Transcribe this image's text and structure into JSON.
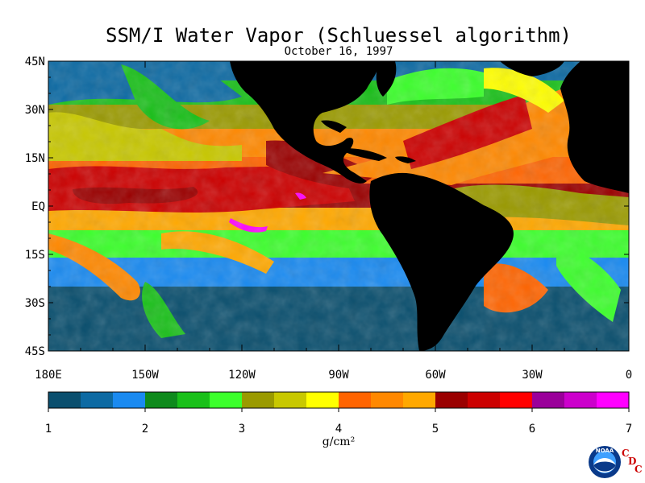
{
  "title": "SSM/I Water Vapor (Schluessel algorithm)",
  "date": "October 16, 1997",
  "lat_labels": [
    "45N",
    "30N",
    "15N",
    "EQ",
    "15S",
    "30S",
    "45S"
  ],
  "lon_labels": [
    "180E",
    "150W",
    "120W",
    "90W",
    "60W",
    "30W",
    "0"
  ],
  "colorbar": {
    "ticks": [
      "1",
      "2",
      "3",
      "4",
      "5",
      "6",
      "7"
    ],
    "unit": "g/cm²",
    "colors": [
      "#0a4f6e",
      "#0d6aa3",
      "#1a8af0",
      "#0e8a1c",
      "#19c019",
      "#3cff2c",
      "#9a9a00",
      "#c8c800",
      "#ffff00",
      "#ff6400",
      "#ff8800",
      "#ffa800",
      "#9a0000",
      "#cc0000",
      "#ff0000",
      "#9a009a",
      "#cc00cc",
      "#ff00ff"
    ]
  },
  "map_colors": {
    "land": "#000000",
    "low": "#0d6aa3",
    "mid": "#19c019",
    "high": "#ff8800",
    "peak": "#9a0000"
  },
  "logo": {
    "noaa_text": "NOAA",
    "cdc_letters": [
      "C",
      "D",
      "C"
    ]
  }
}
